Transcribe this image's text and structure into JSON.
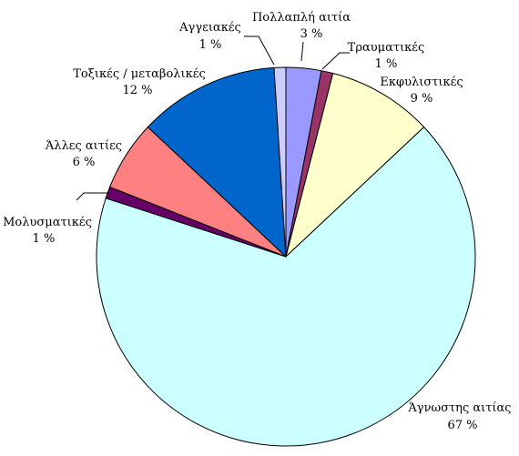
{
  "chart_data": {
    "type": "pie",
    "title": "",
    "slices": [
      {
        "label": "Πολλαπλή  αιτία",
        "value_label": "3 %",
        "value": 3,
        "color": "#9999ff"
      },
      {
        "label": "Τραυματικές",
        "value_label": "1 %",
        "value": 1,
        "color": "#993366"
      },
      {
        "label": "Εκφυλιστικές",
        "value_label": "9 %",
        "value": 9,
        "color": "#ffffcc"
      },
      {
        "label": "Άγνωστης αιτίας",
        "value_label": "67 %",
        "value": 67,
        "color": "#ccffff"
      },
      {
        "label": "Μολυσματικές",
        "value_label": "1 %",
        "value": 1,
        "color": "#660066"
      },
      {
        "label": "Άλλες αιτίες",
        "value_label": "6 %",
        "value": 6,
        "color": "#ff8080"
      },
      {
        "label": "Τοξικές / μεταβολικές",
        "value_label": "12 %",
        "value": 12,
        "color": "#0066cc"
      },
      {
        "label": "Αγγειακές",
        "value_label": "1 %",
        "value": 1,
        "color": "#ccccff"
      }
    ]
  }
}
